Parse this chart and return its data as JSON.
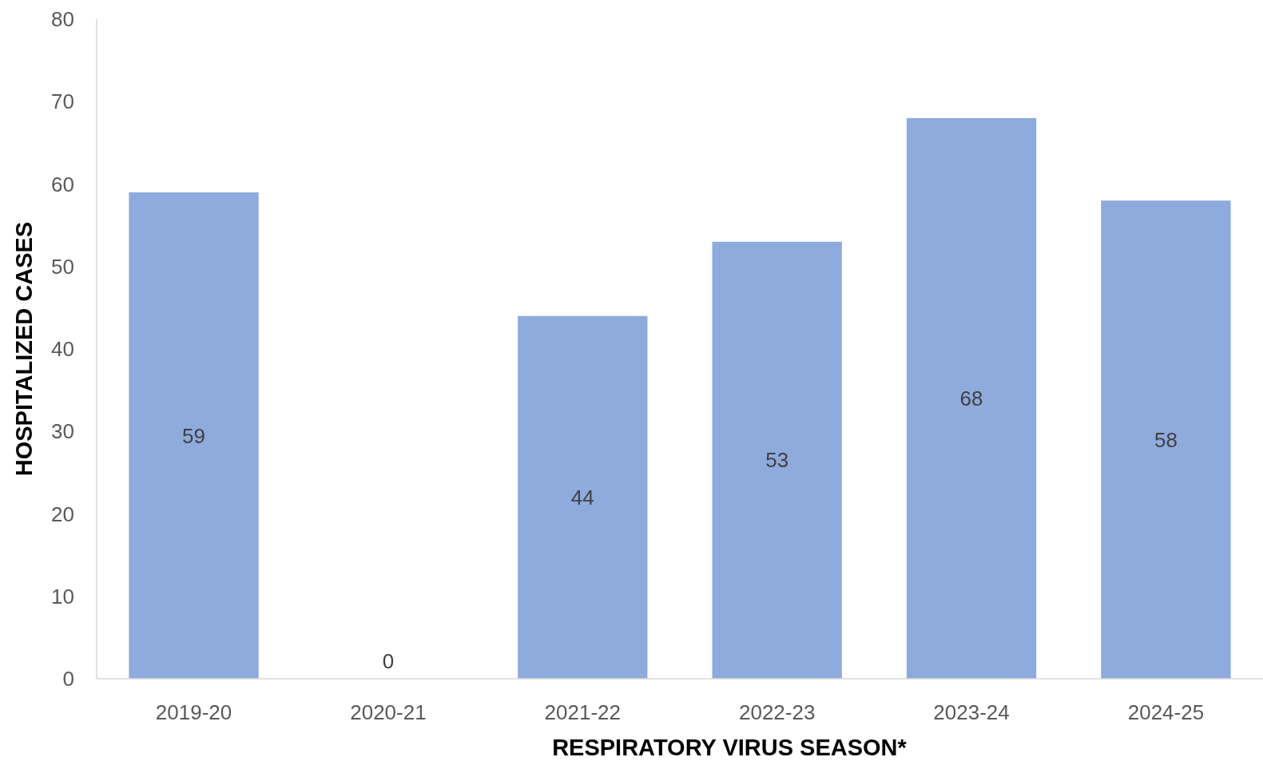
{
  "chart_data": {
    "type": "bar",
    "xlabel": "RESPIRATORY VIRUS SEASON*",
    "ylabel": "HOSPITALIZED CASES",
    "categories": [
      "2019-20",
      "2020-21",
      "2021-22",
      "2022-23",
      "2023-24",
      "2024-25"
    ],
    "values": [
      59,
      0,
      44,
      53,
      68,
      58
    ],
    "color": "#8faadc",
    "ylim": [
      0,
      80
    ],
    "yticks": [
      0,
      10,
      20,
      30,
      40,
      50,
      60,
      70,
      80
    ],
    "grid": false,
    "data_labels": true
  }
}
